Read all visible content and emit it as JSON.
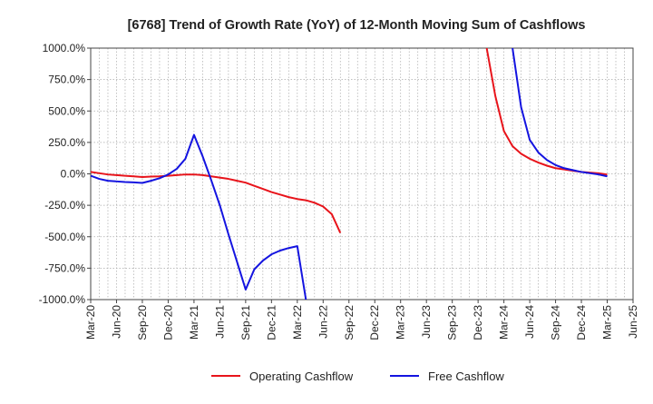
{
  "chart_data": {
    "type": "line",
    "title": "[6768]  Trend of Growth Rate (YoY) of 12-Month Moving Sum of Cashflows",
    "xlabel": "",
    "ylabel": "",
    "ylim": [
      -1000,
      1000
    ],
    "yticks": [
      1000,
      750,
      500,
      250,
      0,
      -250,
      -500,
      -750,
      -1000
    ],
    "ytick_labels": [
      "1000.0%",
      "750.0%",
      "500.0%",
      "250.0%",
      "0.0%",
      "-250.0%",
      "-500.0%",
      "-750.0%",
      "-1000.0%"
    ],
    "xtick_labels": [
      "Mar-20",
      "Jun-20",
      "Sep-20",
      "Dec-20",
      "Mar-21",
      "Jun-21",
      "Sep-21",
      "Dec-21",
      "Mar-22",
      "Jun-22",
      "Sep-22",
      "Dec-22",
      "Mar-23",
      "Jun-23",
      "Sep-23",
      "Dec-23",
      "Mar-24",
      "Jun-24",
      "Sep-24",
      "Dec-24",
      "Mar-25",
      "Jun-25"
    ],
    "x_start": "2020-03",
    "x_end": "2025-06",
    "grid": true,
    "legend_position": "bottom",
    "series": [
      {
        "name": "Operating Cashflow",
        "color": "#e8141b",
        "points": [
          [
            "2020-03",
            15
          ],
          [
            "2020-04",
            5
          ],
          [
            "2020-05",
            -5
          ],
          [
            "2020-06",
            -10
          ],
          [
            "2020-07",
            -15
          ],
          [
            "2020-08",
            -20
          ],
          [
            "2020-09",
            -25
          ],
          [
            "2020-10",
            -22
          ],
          [
            "2020-11",
            -20
          ],
          [
            "2020-12",
            -15
          ],
          [
            "2021-01",
            -10
          ],
          [
            "2021-02",
            -5
          ],
          [
            "2021-03",
            -5
          ],
          [
            "2021-04",
            -10
          ],
          [
            "2021-05",
            -20
          ],
          [
            "2021-06",
            -30
          ],
          [
            "2021-07",
            -40
          ],
          [
            "2021-08",
            -55
          ],
          [
            "2021-09",
            -70
          ],
          [
            "2021-10",
            -95
          ],
          [
            "2021-11",
            -120
          ],
          [
            "2021-12",
            -145
          ],
          [
            "2022-01",
            -165
          ],
          [
            "2022-02",
            -185
          ],
          [
            "2022-03",
            -200
          ],
          [
            "2022-04",
            -210
          ],
          [
            "2022-05",
            -230
          ],
          [
            "2022-06",
            -260
          ],
          [
            "2022-07",
            -320
          ],
          [
            "2022-08",
            -470
          ]
        ],
        "segments_after_gap": [
          [
            [
              "2024-01",
              1000
            ],
            [
              "2024-02",
              620
            ],
            [
              "2024-03",
              340
            ],
            [
              "2024-04",
              220
            ],
            [
              "2024-05",
              160
            ],
            [
              "2024-06",
              120
            ],
            [
              "2024-07",
              90
            ],
            [
              "2024-08",
              65
            ],
            [
              "2024-09",
              45
            ],
            [
              "2024-10",
              35
            ],
            [
              "2024-11",
              25
            ],
            [
              "2024-12",
              15
            ],
            [
              "2025-01",
              10
            ],
            [
              "2025-02",
              5
            ],
            [
              "2025-03",
              -5
            ]
          ]
        ]
      },
      {
        "name": "Free Cashflow",
        "color": "#1414e0",
        "points": [
          [
            "2020-03",
            -15
          ],
          [
            "2020-04",
            -40
          ],
          [
            "2020-05",
            -55
          ],
          [
            "2020-06",
            -60
          ],
          [
            "2020-07",
            -65
          ],
          [
            "2020-08",
            -68
          ],
          [
            "2020-09",
            -72
          ],
          [
            "2020-10",
            -55
          ],
          [
            "2020-11",
            -35
          ],
          [
            "2020-12",
            -5
          ],
          [
            "2021-01",
            40
          ],
          [
            "2021-02",
            120
          ],
          [
            "2021-03",
            310
          ],
          [
            "2021-04",
            140
          ],
          [
            "2021-05",
            -50
          ],
          [
            "2021-06",
            -250
          ],
          [
            "2021-07",
            -480
          ],
          [
            "2021-08",
            -700
          ],
          [
            "2021-09",
            -920
          ],
          [
            "2021-10",
            -760
          ],
          [
            "2021-11",
            -690
          ],
          [
            "2021-12",
            -640
          ],
          [
            "2022-01",
            -610
          ],
          [
            "2022-02",
            -590
          ],
          [
            "2022-03",
            -575
          ],
          [
            "2022-04",
            -1000
          ]
        ],
        "segments_after_gap": [
          [
            [
              "2024-04",
              1000
            ],
            [
              "2024-05",
              530
            ],
            [
              "2024-06",
              270
            ],
            [
              "2024-07",
              170
            ],
            [
              "2024-08",
              110
            ],
            [
              "2024-09",
              70
            ],
            [
              "2024-10",
              45
            ],
            [
              "2024-11",
              30
            ],
            [
              "2024-12",
              15
            ],
            [
              "2025-01",
              5
            ],
            [
              "2025-02",
              -5
            ],
            [
              "2025-03",
              -20
            ]
          ]
        ]
      }
    ]
  }
}
